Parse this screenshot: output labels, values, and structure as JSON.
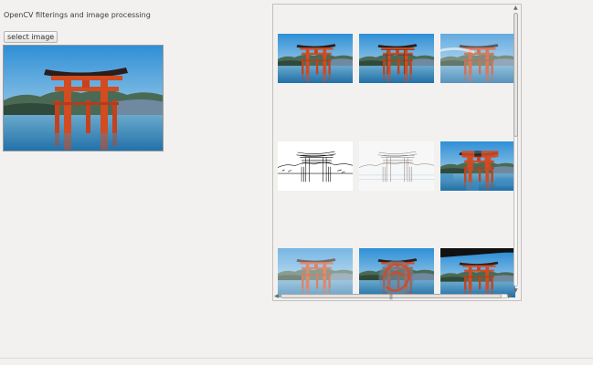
{
  "app": {
    "title": "OpenCV filterings and image processing"
  },
  "toolbar": {
    "select_label": "select image"
  },
  "icons": {
    "scroll_up": "arrow-up-icon",
    "scroll_down": "arrow-down-icon",
    "scroll_left": "arrow-left-icon",
    "scroll_right": "arrow-right-icon",
    "grip": "scroll-grip-icon"
  },
  "colors": {
    "window_bg": "#f2f1f0",
    "sky": "#5fa9dc",
    "water": "#3f8fc4",
    "gate": "#d24b21",
    "hills": "#4b6a55"
  }
}
